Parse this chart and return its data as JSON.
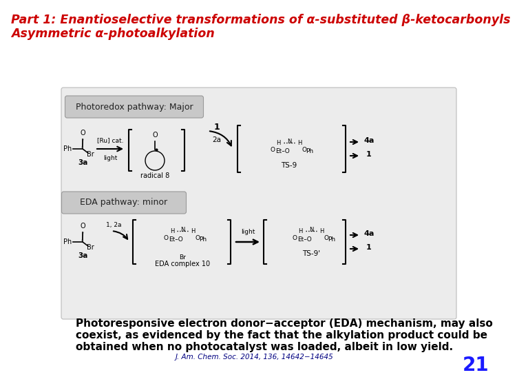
{
  "bg_color": "#ffffff",
  "title_line1": "Part 1: Enantioselective transformations of α-substituted β-ketocarbonyls",
  "title_line2": "Asymmetric α-photoalkylation",
  "title_color": "#cc0000",
  "title_fontsize": 12.5,
  "body_text_line1": "Photoresponsive electron donor−acceptor (EDA) mechanism, may also",
  "body_text_line2": "coexist, as evidenced by the fact that the alkylation product could be",
  "body_text_line3": "obtained when no photocatalyst was loaded, albeit in low yield.",
  "body_color": "#000000",
  "body_fontsize": 11.0,
  "citation": "J. Am. Chem. Soc. 2014, 136, 14642−14645",
  "citation_color": "#000080",
  "citation_fontsize": 7.5,
  "slide_number": "21",
  "slide_number_color": "#1a1aff",
  "slide_number_fontsize": 20,
  "diagram_bg": "#ececec",
  "panel_top_label": "Photoredox pathway: Major",
  "panel_bottom_label": "EDA pathway: minor",
  "panel_label_bg": "#c8c8c8",
  "panel_label_fontsize": 9
}
